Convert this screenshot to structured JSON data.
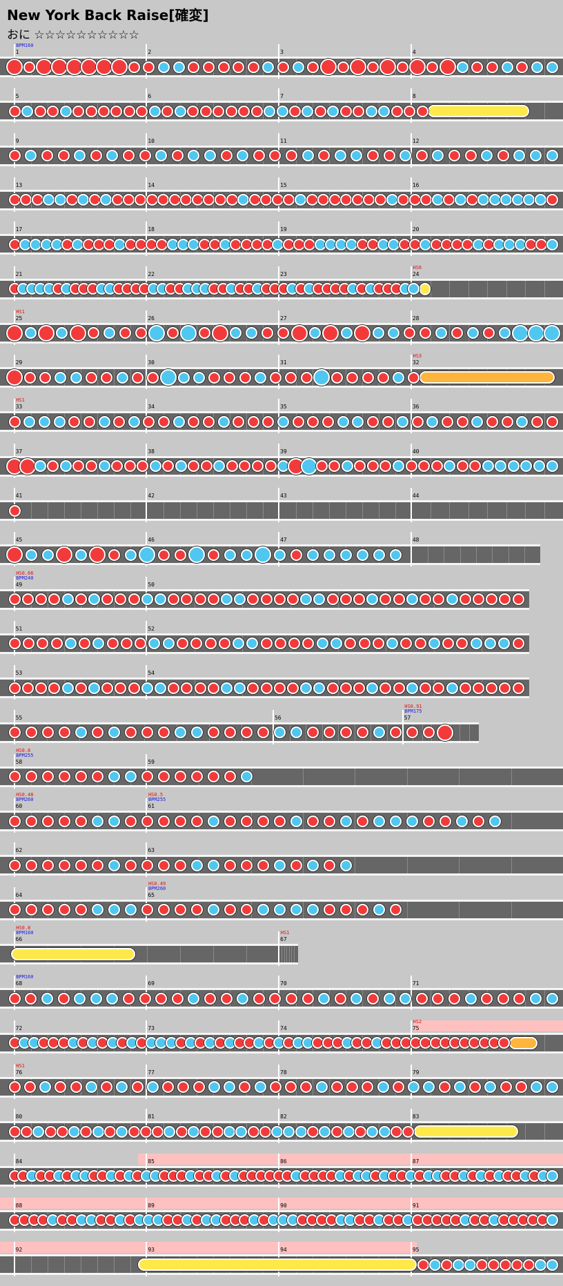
{
  "song": {
    "title": "New York Back Raise[確変]",
    "difficulty": "おに ☆☆☆☆☆☆☆☆☆☆"
  },
  "colors": {
    "don": "#f33a3a",
    "ka": "#4fc7f0",
    "roll": "#ffe94a",
    "balloon": "#ffb43c",
    "gogo": "#ffc0c0"
  },
  "rows": [
    {
      "measures": [
        "1",
        "2",
        "3",
        "4"
      ],
      "cmds": [
        {
          "m": 0,
          "bpm": "BPM160"
        }
      ],
      "notes": "DrDDDrDDrrkkDrDDrkrkDrDrDDDDrrkDrkrkk",
      "big": [
        0,
        2,
        3,
        4,
        5,
        6,
        7,
        21,
        23,
        25,
        27,
        29
      ]
    },
    {
      "measures": [
        "5",
        "6",
        "7",
        "8"
      ],
      "notes": "DkDrkDDDrDrkrkDDDDrDkkrkrkDrkkDrD",
      "rolls": [
        {
          "s": 0.76,
          "e": 0.94,
          "t": "y"
        }
      ]
    },
    {
      "measures": [
        "9",
        "10",
        "11",
        "12"
      ],
      "notes": "DkDDkrkrDkDkkrkDrDkrkkDDkrkDrkrkkk"
    },
    {
      "measures": [
        "13",
        "14",
        "15",
        "16"
      ],
      "notes": "DDrkkDkDkDDrDDrDDDDrkDDDrkDDrDDDDkDDDkrkDkkkkkkD"
    },
    {
      "measures": [
        "17",
        "18",
        "19",
        "20"
      ],
      "notes": "DkkkkDkDDDkDrDDkkkDDkDDDDkDDrkkkkDrkkDDkDrDDkDkkkDDk"
    },
    {
      "measures": [
        "21",
        "22",
        "23",
        "24"
      ],
      "cmds": [
        {
          "m": 3,
          "hs": "HS6"
        }
      ],
      "notes": "DkkkkDkDDDkkDrDDkkDDkkkDDkDDkDDrkrkDDDDkDkDDDkk",
      "rolls": [
        {
          "s": 0.745,
          "e": 0.765,
          "t": "y"
        }
      ]
    },
    {
      "measures": [
        "25",
        "26",
        "27",
        "28"
      ],
      "cmds": [
        {
          "m": 0,
          "hs": "HS1"
        }
      ],
      "notes": "DkDkDDkDDkDkDDkkDDDkDkDkkDDkDkDkkkk",
      "big": [
        0,
        2,
        4,
        9,
        11,
        13,
        18,
        20,
        22,
        32,
        33,
        34
      ]
    },
    {
      "measures": [
        "29",
        "30",
        "31",
        "32"
      ],
      "cmds": [
        {
          "m": 3,
          "hs": "HS3"
        }
      ],
      "notes": "DDrkkDDkDDkkkrDDkDDrkDDDDkD",
      "big": [
        0,
        10,
        20
      ],
      "rolls": [
        {
          "s": 0.745,
          "e": 0.985,
          "t": "o"
        }
      ]
    },
    {
      "measures": [
        "33",
        "34",
        "35",
        "36"
      ],
      "cmds": [
        {
          "m": 0,
          "hs": "HS1"
        }
      ],
      "notes": "DkkkDDkDkDDkDDkDDDkDDDkkDDkDkDDkDDkDD"
    },
    {
      "measures": [
        "37",
        "38",
        "39",
        "40"
      ],
      "notes": "DDkDkDDkDDDkDkDDkDDDDkDkDDkDDDkDDDkDDkkkkkk",
      "big": [
        0,
        1,
        22,
        23
      ]
    },
    {
      "measures": [
        "41",
        "42",
        "43",
        "44"
      ],
      "notes": "D"
    },
    {
      "measures": [
        "45",
        "46",
        "47",
        "48"
      ],
      "w": 0.96,
      "notes": "DkkDkDDkkDDkDkkkkDkkkkkk",
      "big": [
        0,
        3,
        5,
        8,
        11,
        15
      ]
    },
    {
      "measures": [
        "49",
        "50"
      ],
      "w": 0.94,
      "cmds": [
        {
          "m": 0,
          "hs": "HS0.66",
          "bpm": "BPM240"
        }
      ],
      "notes": "DDDDkDkDDDkkDDDDkkDDDDkkDDDkDDkDDkDDDDD"
    },
    {
      "measures": [
        "51",
        "52"
      ],
      "w": 0.94,
      "notes": "DDDDkDkDDDkkDDDDkkDDDDkkDDDkDDkDDkkkD"
    },
    {
      "measures": [
        "53",
        "54"
      ],
      "w": 0.94,
      "notes": "DDDDkDkDDDkkDDDDkkDDDDkkDDDkDDkDDkDDDDD"
    },
    {
      "measures": [
        "55",
        "56",
        "57"
      ],
      "w": 0.85,
      "splits": [
        0,
        0.46,
        0.69
      ],
      "cmds": [
        {
          "m": 2,
          "hs": "HS0.91",
          "bpm": "BPM175"
        }
      ],
      "notes": "DDDDkDkDDDkkDDDDkkDDDDkDDDD",
      "big": [
        26
      ]
    },
    {
      "measures": [
        "58",
        "59"
      ],
      "cmds": [
        {
          "m": 0,
          "hs": "HS0.8",
          "bpm": "BPM255"
        }
      ],
      "notes": "DDDDDDkkDDDDDDk"
    },
    {
      "measures": [
        "60",
        "61"
      ],
      "cmds": [
        {
          "m": 0,
          "hs": "HS0.48",
          "bpm": "BPM260"
        },
        {
          "m": 1,
          "hs": "HS0.5",
          "bpm": "BPM255"
        }
      ],
      "notes": "DDDDDkkDDDDDkDDDDkDDkDkkkDDkDk"
    },
    {
      "measures": [
        "62",
        "63"
      ],
      "notes": "DDDDDDkDDDDkkDDDkDkDk"
    },
    {
      "measures": [
        "64",
        "65"
      ],
      "cmds": [
        {
          "m": 1,
          "hs": "HS0.49",
          "bpm": "BPM260"
        }
      ],
      "notes": "DDDDDkkkDDDDkDDkkkkDDDkD"
    },
    {
      "measures": [
        "66",
        "67"
      ],
      "w": 0.53,
      "splits": [
        0,
        0.47
      ],
      "cmds": [
        {
          "m": 0,
          "hs": "HS0.8",
          "bpm": "BPM160"
        },
        {
          "m": 1,
          "hs": "HS1"
        }
      ],
      "notes": "",
      "rolls": [
        {
          "s": 0.02,
          "e": 0.24,
          "t": "y"
        }
      ]
    },
    {
      "measures": [
        "68",
        "69",
        "70",
        "71"
      ],
      "cmds": [
        {
          "m": 0,
          "bpm": "BPM160"
        }
      ],
      "notes": "DDkDkkkDDDDkDDkDDDrkDkDkkDDDkDDDkk"
    },
    {
      "measures": [
        "72",
        "73",
        "74",
        "75"
      ],
      "cmds": [
        {
          "m": 3,
          "hs": "HS2"
        }
      ],
      "notes": "DkkDDDkDkDkDkDkkkDkDkDkDDkDkDkkDDDkDDkDDDDDDDDDDDDD",
      "rolls": [
        {
          "s": 0.905,
          "e": 0.955,
          "t": "o"
        }
      ]
    },
    {
      "measures": [
        "76",
        "77",
        "78",
        "79"
      ],
      "cmds": [
        {
          "m": 0,
          "hs": "HS1"
        }
      ],
      "notes": "DDkDDkDkDkDDDkkDkDDDkDDDkDkkDkDkDDkk"
    },
    {
      "measures": [
        "80",
        "81",
        "82",
        "83"
      ],
      "notes": "DDkDDkDkDkDDDkDkDDkkDDkkkDkDkDkkDD",
      "rolls": [
        {
          "s": 0.735,
          "e": 0.92,
          "t": "y"
        }
      ]
    },
    {
      "measures": [
        "84",
        "85",
        "86",
        "87"
      ],
      "notes": "DDkDDkDkkDDkDkDkkDDDkDDkDkDDDDDDkDDDDkDkkDkDDkDkkDDkDkDkDDkDkk"
    },
    {
      "measures": [
        "88",
        "89",
        "90",
        "91"
      ],
      "notes": "DDDDkDDkkDDkDkkkDDkDkkDDDkDkkkDDDDkkDDkDDkDDDDDkDDkDDDDDk",
      "big": [
        58
      ]
    },
    {
      "measures": [
        "92",
        "93",
        "94",
        "95"
      ],
      "notes": "DkDkkDDDDDkk",
      "rolls": [
        {
          "s": 0.245,
          "e": 0.74,
          "t": "y"
        }
      ]
    }
  ]
}
